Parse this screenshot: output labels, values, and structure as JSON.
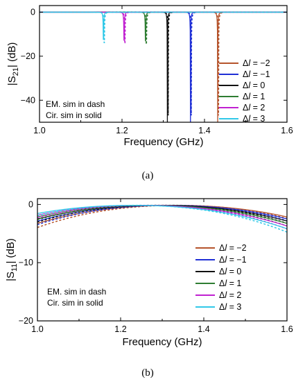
{
  "figure": {
    "caption_a": "(a)",
    "caption_b": "(b)"
  },
  "chart_data": [
    {
      "type": "line",
      "panel": "a",
      "xlabel": "Frequency (GHz)",
      "ylabel_main": "|S",
      "ylabel_sub": "21",
      "ylabel_tail": "| (dB)",
      "xlim": [
        1.0,
        1.6
      ],
      "ylim": [
        -50,
        3
      ],
      "xticks": [
        1.0,
        1.2,
        1.4,
        1.6
      ],
      "xtick_labels": [
        "1.0",
        "1.2",
        "1.4",
        "1.6"
      ],
      "yticks": [
        0,
        -20,
        -40
      ],
      "ytick_labels": [
        "0",
        "-20",
        "-40"
      ],
      "grid": false,
      "legend_position": "right",
      "annotations": [
        "EM. sim in dash",
        "Cir. sim in solid"
      ],
      "series": [
        {
          "name": "Δl = −2",
          "color": "#b5532b",
          "f0": 1.432
        },
        {
          "name": "Δl = −1",
          "color": "#1f2fd6",
          "f0": 1.366
        },
        {
          "name": "Δl = 0",
          "color": "#111111",
          "f0": 1.31
        },
        {
          "name": "Δl = 1",
          "color": "#2e7d32",
          "f0": 1.257
        },
        {
          "name": "Δl = 2",
          "color": "#c020d0",
          "f0": 1.205
        },
        {
          "name": "Δl = 3",
          "color": "#30c8e8",
          "f0": 1.155
        }
      ]
    },
    {
      "type": "line",
      "panel": "b",
      "xlabel": "Frequency (GHz)",
      "ylabel_main": "|S",
      "ylabel_sub": "11",
      "ylabel_tail": "| (dB)",
      "xlim": [
        1.0,
        1.6
      ],
      "ylim": [
        -20,
        1
      ],
      "xticks": [
        1.0,
        1.2,
        1.4,
        1.6
      ],
      "xtick_labels": [
        "1.0",
        "1.2",
        "1.4",
        "1.6"
      ],
      "yticks": [
        0,
        -10,
        -20
      ],
      "ytick_labels": [
        "0",
        "-10",
        "-20"
      ],
      "grid": false,
      "legend_position": "right",
      "annotations": [
        "EM. sim in dash",
        "Cir. sim in solid"
      ],
      "series": [
        {
          "name": "Δl = −2",
          "color": "#b5532b",
          "f0": 1.33
        },
        {
          "name": "Δl = −1",
          "color": "#1f2fd6",
          "f0": 1.31
        },
        {
          "name": "Δl = 0",
          "color": "#111111",
          "f0": 1.29
        },
        {
          "name": "Δl = 1",
          "color": "#2e7d32",
          "f0": 1.27
        },
        {
          "name": "Δl = 2",
          "color": "#c020d0",
          "f0": 1.25
        },
        {
          "name": "Δl = 3",
          "color": "#30c8e8",
          "f0": 1.23
        }
      ]
    }
  ]
}
